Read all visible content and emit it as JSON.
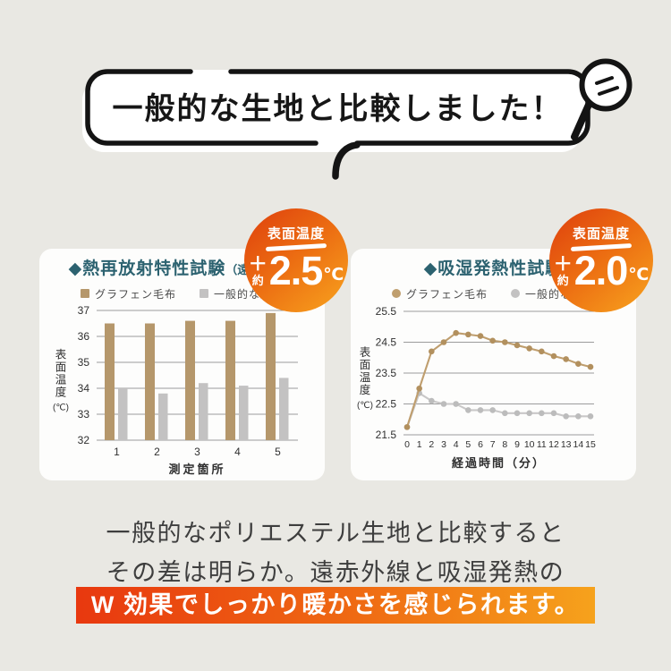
{
  "colors": {
    "background": "#e9e8e3",
    "card": "#fdfdfc",
    "ink": "#161616",
    "title_teal": "#2c6270",
    "graphene_tan": "#b5976b",
    "graphene_line_tan": "#bf9e6e",
    "generic_gray": "#c3c2c2",
    "grid_gray": "#9c9c9c",
    "badge_gradient": [
      "#de3f0d",
      "#f8a41e"
    ],
    "highlight_gradient": [
      "#e8380f",
      "#f6a21c"
    ]
  },
  "header": {
    "bubble_text": "一般的な生地と比較しました！",
    "decoration": "magnifier-icon"
  },
  "panels": [
    {
      "badge": {
        "label": "表面温度",
        "plus": "＋",
        "approx": "約",
        "value": "2.5",
        "unit": "℃"
      },
      "title": "◆熱再放射特性試験",
      "title_note": "（遠赤外線）",
      "legend": [
        {
          "label": "グラフェン毛布",
          "color": "#b5976b",
          "marker": "square"
        },
        {
          "label": "一般的な生地",
          "color": "#c3c2c2",
          "marker": "square"
        }
      ],
      "chart_data": {
        "type": "bar",
        "categories": [
          "1",
          "2",
          "3",
          "4",
          "5"
        ],
        "series": [
          {
            "name": "グラフェン毛布",
            "color": "#b5976b",
            "values": [
              36.5,
              36.5,
              36.6,
              36.6,
              36.9
            ]
          },
          {
            "name": "一般的な生地",
            "color": "#c3c2c2",
            "values": [
              34.0,
              33.8,
              34.2,
              34.1,
              34.4
            ]
          }
        ],
        "xlabel": "測定箇所",
        "ylabel": "表面温度",
        "ylabel_unit": "(℃)",
        "ylim": [
          32,
          37
        ],
        "yticks": [
          32,
          33,
          34,
          35,
          36,
          37
        ],
        "grid": true,
        "legend_position": "top"
      }
    },
    {
      "badge": {
        "label": "表面温度",
        "plus": "＋",
        "approx": "約",
        "value": "2.0",
        "unit": "℃"
      },
      "title": "◆吸湿発熱性試験",
      "title_note": "",
      "legend": [
        {
          "label": "グラフェン毛布",
          "color": "#bf9e6e",
          "marker": "circle"
        },
        {
          "label": "一般的な生地",
          "color": "#c3c2c2",
          "marker": "circle"
        }
      ],
      "chart_data": {
        "type": "line",
        "x": [
          0,
          1,
          2,
          3,
          4,
          5,
          6,
          7,
          8,
          9,
          10,
          11,
          12,
          13,
          14,
          15
        ],
        "series": [
          {
            "name": "グラフェン毛布",
            "color": "#bf9e6e",
            "dot_color": "#b2905e",
            "values": [
              21.75,
              23.0,
              24.2,
              24.5,
              24.8,
              24.75,
              24.7,
              24.55,
              24.5,
              24.4,
              24.3,
              24.2,
              24.05,
              23.95,
              23.8,
              23.7
            ]
          },
          {
            "name": "一般的な生地",
            "color": "#c9c8c8",
            "dot_color": "#bcbcbc",
            "values": [
              21.75,
              22.85,
              22.6,
              22.5,
              22.5,
              22.3,
              22.3,
              22.3,
              22.2,
              22.2,
              22.2,
              22.2,
              22.2,
              22.1,
              22.1,
              22.1
            ]
          }
        ],
        "xlabel": "経過時間（分）",
        "ylabel": "表面温度",
        "ylabel_unit": "(℃)",
        "ylim": [
          21.5,
          25.5
        ],
        "yticks": [
          21.5,
          22.5,
          23.5,
          24.5,
          25.5
        ],
        "grid": true,
        "legend_position": "top"
      }
    }
  ],
  "footer": {
    "line1": "一般的なポリエステル生地と比較すると",
    "line2": "その差は明らか。遠赤外線と吸湿発熱の",
    "highlight": "W 効果でしっかり暖かさを感じられます。"
  }
}
